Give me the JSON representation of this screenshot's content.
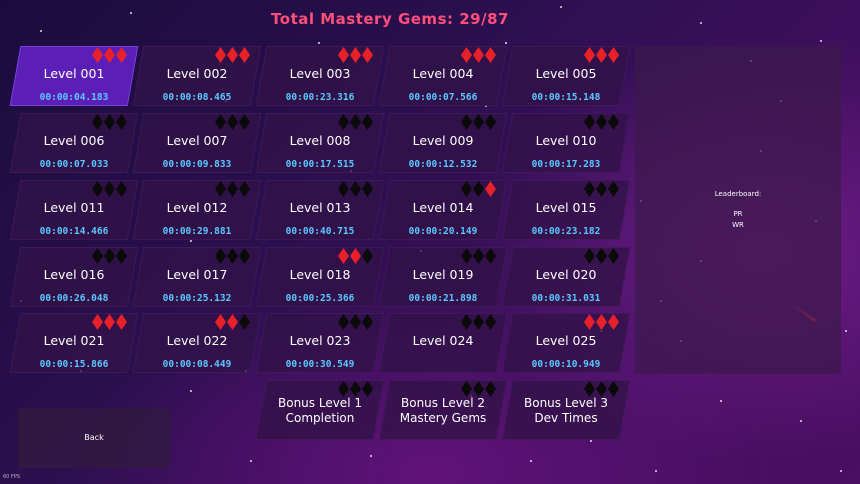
{
  "header": {
    "title": "Total Mastery Gems: 29/87"
  },
  "levels": [
    {
      "label": "Level 001",
      "time": "00:00:04.183",
      "gems": [
        "red",
        "red",
        "red"
      ],
      "selected": true
    },
    {
      "label": "Level 002",
      "time": "00:00:08.465",
      "gems": [
        "red",
        "red",
        "red"
      ]
    },
    {
      "label": "Level 003",
      "time": "00:00:23.316",
      "gems": [
        "red",
        "red",
        "red"
      ]
    },
    {
      "label": "Level 004",
      "time": "00:00:07.566",
      "gems": [
        "red",
        "red",
        "red"
      ]
    },
    {
      "label": "Level 005",
      "time": "00:00:15.148",
      "gems": [
        "red",
        "red",
        "red"
      ]
    },
    {
      "label": "Level 006",
      "time": "00:00:07.033",
      "gems": [
        "black",
        "black",
        "black"
      ]
    },
    {
      "label": "Level 007",
      "time": "00:00:09.833",
      "gems": [
        "black",
        "black",
        "black"
      ]
    },
    {
      "label": "Level 008",
      "time": "00:00:17.515",
      "gems": [
        "black",
        "black",
        "black"
      ]
    },
    {
      "label": "Level 009",
      "time": "00:00:12.532",
      "gems": [
        "black",
        "black",
        "black"
      ]
    },
    {
      "label": "Level 010",
      "time": "00:00:17.283",
      "gems": [
        "black",
        "black",
        "black"
      ]
    },
    {
      "label": "Level 011",
      "time": "00:00:14.466",
      "gems": [
        "black",
        "black",
        "black"
      ]
    },
    {
      "label": "Level 012",
      "time": "00:00:29.881",
      "gems": [
        "black",
        "black",
        "black"
      ]
    },
    {
      "label": "Level 013",
      "time": "00:00:40.715",
      "gems": [
        "black",
        "black",
        "black"
      ]
    },
    {
      "label": "Level 014",
      "time": "00:00:20.149",
      "gems": [
        "black",
        "black",
        "red"
      ]
    },
    {
      "label": "Level 015",
      "time": "00:00:23.182",
      "gems": [
        "black",
        "black",
        "black"
      ]
    },
    {
      "label": "Level 016",
      "time": "00:00:26.048",
      "gems": [
        "black",
        "black",
        "black"
      ]
    },
    {
      "label": "Level 017",
      "time": "00:00:25.132",
      "gems": [
        "black",
        "black",
        "black"
      ]
    },
    {
      "label": "Level 018",
      "time": "00:00:25.366",
      "gems": [
        "red",
        "red",
        "black"
      ]
    },
    {
      "label": "Level 019",
      "time": "00:00:21.898",
      "gems": [
        "black",
        "black",
        "black"
      ]
    },
    {
      "label": "Level 020",
      "time": "00:00:31.031",
      "gems": [
        "black",
        "black",
        "black"
      ]
    },
    {
      "label": "Level 021",
      "time": "00:00:15.866",
      "gems": [
        "red",
        "red",
        "red"
      ]
    },
    {
      "label": "Level 022",
      "time": "00:00:08.449",
      "gems": [
        "red",
        "red",
        "black"
      ]
    },
    {
      "label": "Level 023",
      "time": "00:00:30.549",
      "gems": [
        "black",
        "black",
        "black"
      ]
    },
    {
      "label": "Level 024",
      "time": "",
      "gems": [
        "black",
        "black",
        "black"
      ]
    },
    {
      "label": "Level 025",
      "time": "00:00:10.949",
      "gems": [
        "red",
        "red",
        "red"
      ]
    }
  ],
  "bonus": [
    {
      "line1": "Bonus Level 1",
      "line2": "Completion",
      "gems": [
        "black",
        "black",
        "black"
      ]
    },
    {
      "line1": "Bonus Level 2",
      "line2": "Mastery Gems",
      "gems": [
        "black",
        "black",
        "black"
      ]
    },
    {
      "line1": "Bonus Level 3",
      "line2": "Dev Times",
      "gems": [
        "black",
        "black",
        "black"
      ]
    }
  ],
  "leaderboard": {
    "title": "Leaderboard:",
    "pr_label": "PR",
    "wr_label": "WR"
  },
  "back_label": "Back",
  "fps_text": "60 FPS",
  "colors": {
    "title": "#ff4f7a",
    "time": "#5cc8ff",
    "gem_red": "#e8202a",
    "gem_black": "#0a0a0a",
    "selected": "#5b1fb8"
  }
}
